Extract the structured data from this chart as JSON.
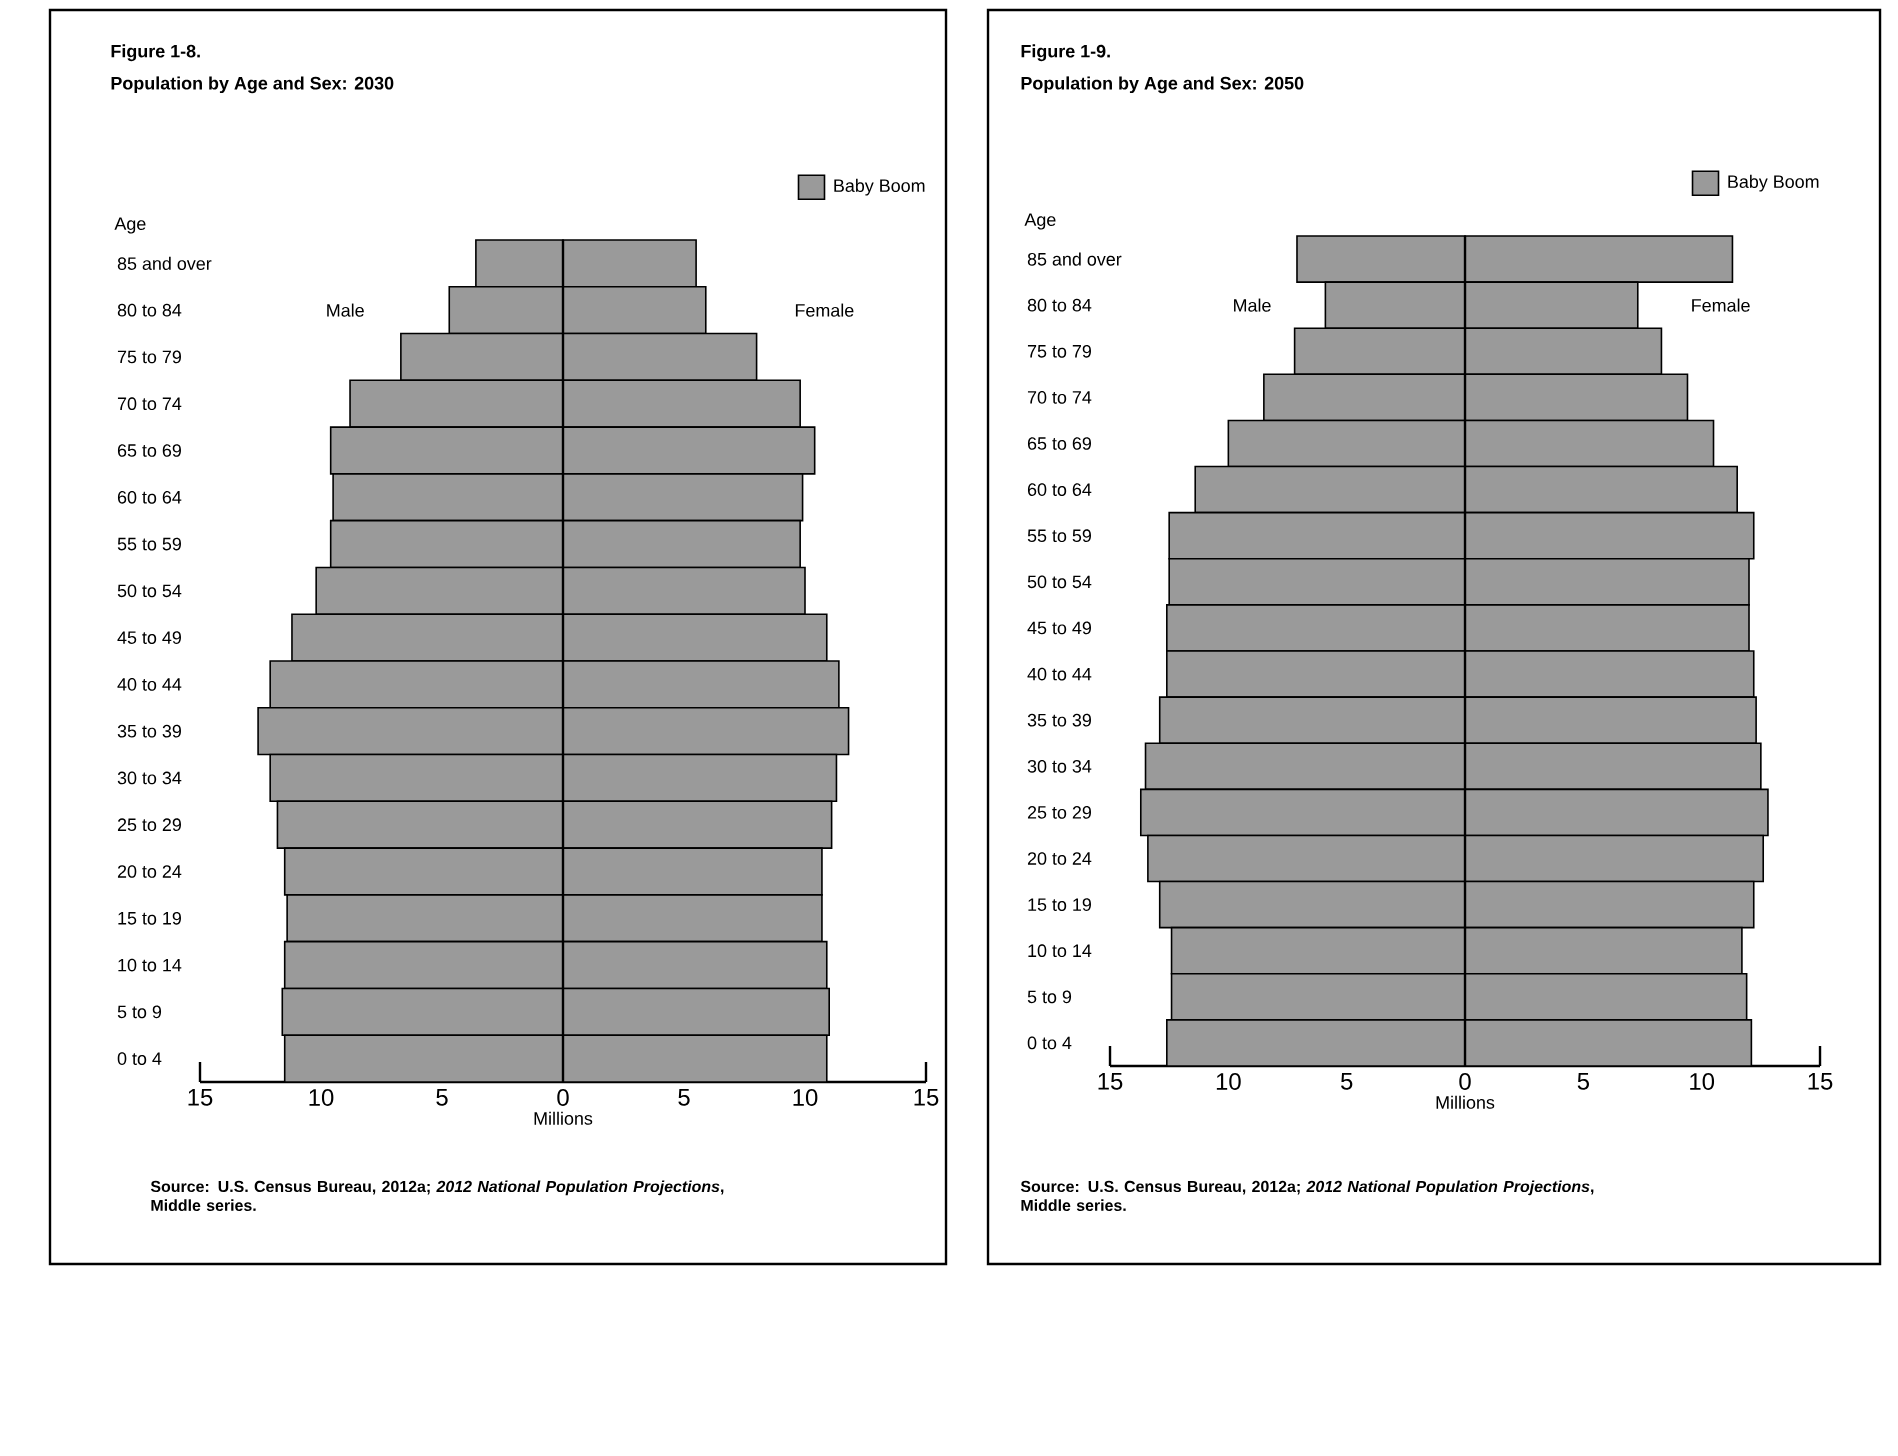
{
  "chart_data": [
    {
      "type": "bar",
      "orientation": "horizontal",
      "stacked": true,
      "title": "Figure 1-8.",
      "subtitle": "Population by Age and Sex: 2030",
      "xlabel": "Millions",
      "ylabel": "Age",
      "legend_title": "Baby Boom",
      "legend": "top right",
      "categories": [
        "85 and over",
        "80 to 84",
        "75 to 79",
        "70 to 74",
        "65 to 69",
        "60 to 64",
        "55 to 59",
        "50 to 54",
        "45 to 49",
        "40 to 44",
        "35 to 39",
        "30 to 34",
        "25 to 29",
        "20 to 24",
        "15 to 19",
        "10 to 14",
        "5 to 9",
        "0 to 4"
      ],
      "series": [
        {
          "name": "Male",
          "color": "#9a9a9a",
          "values": [
            -3.6,
            -4.7,
            -6.7,
            -8.8,
            -9.6,
            -9.5,
            -9.6,
            -10.2,
            -11.2,
            -12.1,
            -12.6,
            -12.1,
            -11.8,
            -11.5,
            -11.4,
            -11.5,
            -11.6,
            -11.5
          ]
        },
        {
          "name": "Female",
          "color": "#9a9a9a",
          "values": [
            5.5,
            5.9,
            8.0,
            9.8,
            10.4,
            9.9,
            9.8,
            10.0,
            10.9,
            11.4,
            11.8,
            11.3,
            11.1,
            10.7,
            10.7,
            10.9,
            11.0,
            10.9
          ]
        }
      ],
      "xlim": [
        -15,
        15
      ],
      "xticks": [
        {
          "value": -15,
          "label": "15"
        },
        {
          "value": -10,
          "label": "10"
        },
        {
          "value": -5,
          "label": "5"
        },
        0,
        5,
        10,
        15
      ],
      "ref_lines": [
        {
          "axis": "x",
          "value": 0,
          "color": "#000000"
        }
      ],
      "annotations": [
        "Source: U.S. Census Bureau, 2012a; *2012 National Population Projections*, Middle series."
      ]
    },
    {
      "type": "bar",
      "orientation": "horizontal",
      "stacked": true,
      "title": "Figure 1-9.",
      "subtitle": "Population by Age and Sex: 2050",
      "xlabel": "Millions",
      "ylabel": "Age",
      "legend_title": "Baby Boom",
      "legend": "top right",
      "categories": [
        "85 and over",
        "80 to 84",
        "75 to 79",
        "70 to 74",
        "65 to 69",
        "60 to 64",
        "55 to 59",
        "50 to 54",
        "45 to 49",
        "40 to 44",
        "35 to 39",
        "30 to 34",
        "25 to 29",
        "20 to 24",
        "15 to 19",
        "10 to 14",
        "5 to 9",
        "0 to 4"
      ],
      "series": [
        {
          "name": "Male",
          "color": "#9a9a9a",
          "values": [
            -7.1,
            -5.9,
            -7.2,
            -8.5,
            -10.0,
            -11.4,
            -12.5,
            -12.5,
            -12.6,
            -12.6,
            -12.9,
            -13.5,
            -13.7,
            -13.4,
            -12.9,
            -12.4,
            -12.4,
            -12.6
          ]
        },
        {
          "name": "Female",
          "color": "#9a9a9a",
          "values": [
            11.3,
            7.3,
            8.3,
            9.4,
            10.5,
            11.5,
            12.2,
            12.0,
            12.0,
            12.2,
            12.3,
            12.5,
            12.8,
            12.6,
            12.2,
            11.7,
            11.9,
            12.1
          ]
        }
      ],
      "xlim": [
        -15,
        15
      ],
      "xticks": [
        {
          "value": -15,
          "label": "15"
        },
        {
          "value": -10,
          "label": "10"
        },
        {
          "value": -5,
          "label": "5"
        },
        0,
        5,
        10,
        15
      ],
      "ref_lines": [
        {
          "axis": "x",
          "value": 0,
          "color": "#000000"
        }
      ],
      "annotations": [
        "Source: U.S. Census Bureau, 2012a; *2012 National Population Projections*, Middle series."
      ]
    }
  ]
}
